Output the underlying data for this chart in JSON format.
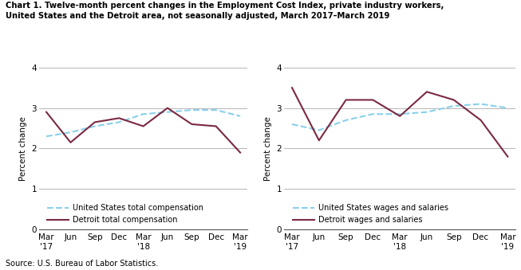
{
  "title_line1": "Chart 1. Twelve-month percent changes in the Employment Cost Index, private industry workers,",
  "title_line2": "United States and the Detroit area, not seasonally adjusted, March 2017–March 2019",
  "x_labels": [
    "Mar\n'17",
    "Jun",
    "Sep",
    "Dec",
    "Mar\n'18",
    "Jun",
    "Sep",
    "Dec",
    "Mar\n'19"
  ],
  "left_us": [
    2.3,
    2.4,
    2.55,
    2.65,
    2.85,
    2.9,
    2.95,
    2.95,
    2.8
  ],
  "left_detroit": [
    2.9,
    2.15,
    2.65,
    2.75,
    2.55,
    3.0,
    2.6,
    2.55,
    1.9
  ],
  "right_us": [
    2.6,
    2.45,
    2.7,
    2.85,
    2.85,
    2.9,
    3.05,
    3.1,
    3.0
  ],
  "right_detroit": [
    3.5,
    2.2,
    3.2,
    3.2,
    2.8,
    3.4,
    3.2,
    2.7,
    1.8
  ],
  "us_color": "#88d0eb",
  "detroit_color": "#7b2942",
  "ylabel": "Percent change",
  "ylim": [
    0.0,
    4.0
  ],
  "yticks": [
    0.0,
    1.0,
    2.0,
    3.0,
    4.0
  ],
  "source": "Source: U.S. Bureau of Labor Statistics.",
  "left_legend1": "United States total compensation",
  "left_legend2": "Detroit total compensation",
  "right_legend1": "United States wages and salaries",
  "right_legend2": "Detroit wages and salaries"
}
